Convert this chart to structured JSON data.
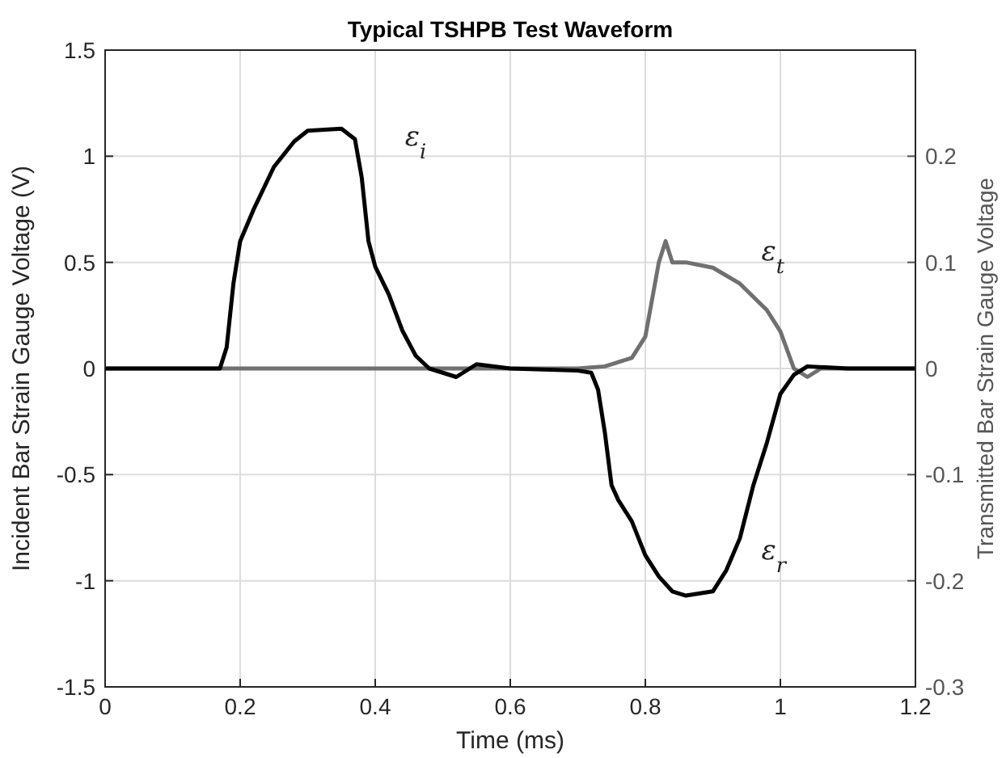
{
  "chart_data": {
    "type": "line",
    "title": "Typical TSHPB Test Waveform",
    "xlabel": "Time (ms)",
    "ylabel": "Incident Bar Strain Gauge Voltage (V)",
    "y2label": "Transmitted Bar Strain Gauge Voltage",
    "xlim": [
      0,
      1.2
    ],
    "xticks": [
      0,
      0.2,
      0.4,
      0.6,
      0.8,
      1,
      1.2
    ],
    "ylim": [
      -1.5,
      1.5
    ],
    "yticks": [
      -1.5,
      -1,
      -0.5,
      0,
      0.5,
      1,
      1.5
    ],
    "y2lim": [
      -0.3,
      0.3
    ],
    "y2ticks": [
      -0.3,
      -0.2,
      -0.1,
      0,
      0.1,
      0.2
    ],
    "grid": true,
    "line_style": "solid",
    "marker": "none",
    "series": [
      {
        "color": "#707070",
        "axis": "y2",
        "x": [
          0,
          0.7,
          0.74,
          0.78,
          0.8,
          0.82,
          0.83,
          0.84,
          0.86,
          0.9,
          0.94,
          0.98,
          1.0,
          1.02,
          1.04,
          1.06,
          1.2
        ],
        "values": [
          0,
          0,
          0.002,
          0.01,
          0.03,
          0.1,
          0.12,
          0.1,
          0.1,
          0.095,
          0.08,
          0.055,
          0.035,
          0,
          -0.008,
          0,
          0
        ]
      },
      {
        "color": "#000000",
        "x": [
          0,
          0.17,
          0.18,
          0.19,
          0.2,
          0.22,
          0.25,
          0.28,
          0.3,
          0.35,
          0.37,
          0.38,
          0.39,
          0.4,
          0.42,
          0.44,
          0.46,
          0.48,
          0.5,
          0.52,
          0.55,
          0.6,
          0.7,
          0.72,
          0.73,
          0.74,
          0.75,
          0.76,
          0.78,
          0.8,
          0.82,
          0.84,
          0.86,
          0.9,
          0.92,
          0.94,
          0.96,
          0.98,
          1.0,
          1.02,
          1.04,
          1.1,
          1.2
        ],
        "values": [
          0,
          0,
          0.1,
          0.4,
          0.6,
          0.75,
          0.95,
          1.07,
          1.12,
          1.13,
          1.08,
          0.9,
          0.6,
          0.48,
          0.35,
          0.18,
          0.06,
          0,
          -0.02,
          -0.04,
          0.02,
          0,
          -0.01,
          -0.02,
          -0.1,
          -0.3,
          -0.55,
          -0.62,
          -0.72,
          -0.88,
          -0.98,
          -1.05,
          -1.07,
          -1.05,
          -0.95,
          -0.8,
          -0.55,
          -0.35,
          -0.12,
          -0.03,
          0.01,
          0,
          0
        ]
      }
    ],
    "annotations": [
      "ε$_{i}$",
      "ε$_{t}$",
      "ε$_{r}$"
    ]
  }
}
